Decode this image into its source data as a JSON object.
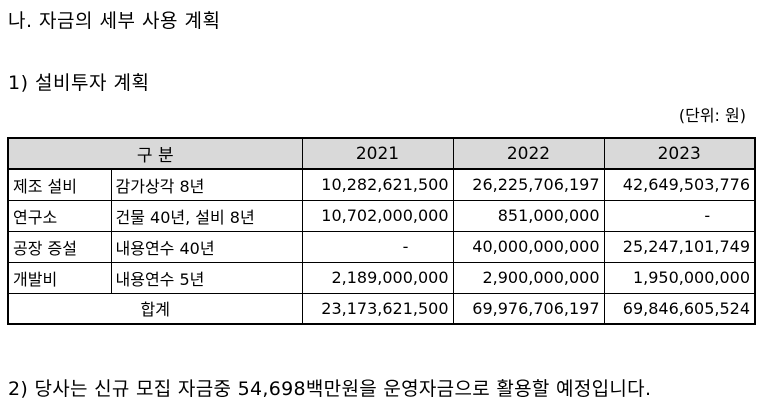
{
  "title": "나. 자금의 세부 사용 계획",
  "subtitle": "1) 설비투자 계획",
  "unit": "(단위: 원)",
  "table": {
    "header": {
      "category": "구 분",
      "years": [
        "2021",
        "2022",
        "2023"
      ]
    },
    "rows": [
      {
        "item": "제조 설비",
        "detail": "감가상각 8년",
        "values": [
          "10,282,621,500",
          "26,225,706,197",
          "42,649,503,776"
        ]
      },
      {
        "item": "연구소",
        "detail": "건물 40년, 설비 8년",
        "values": [
          "10,702,000,000",
          "851,000,000",
          "-"
        ]
      },
      {
        "item": "공장 증설",
        "detail": "내용연수 40년",
        "values": [
          "-",
          "40,000,000,000",
          "25,247,101,749"
        ]
      },
      {
        "item": "개발비",
        "detail": "내용연수 5년",
        "values": [
          "2,189,000,000",
          "2,900,000,000",
          "1,950,000,000"
        ]
      }
    ],
    "total": {
      "label": "합계",
      "values": [
        "23,173,621,500",
        "69,976,706,197",
        "69,846,605,524"
      ]
    }
  },
  "note": "2) 당사는 신규 모집 자금중 54,698백만원을 운영자금으로 활용할 예정입니다."
}
